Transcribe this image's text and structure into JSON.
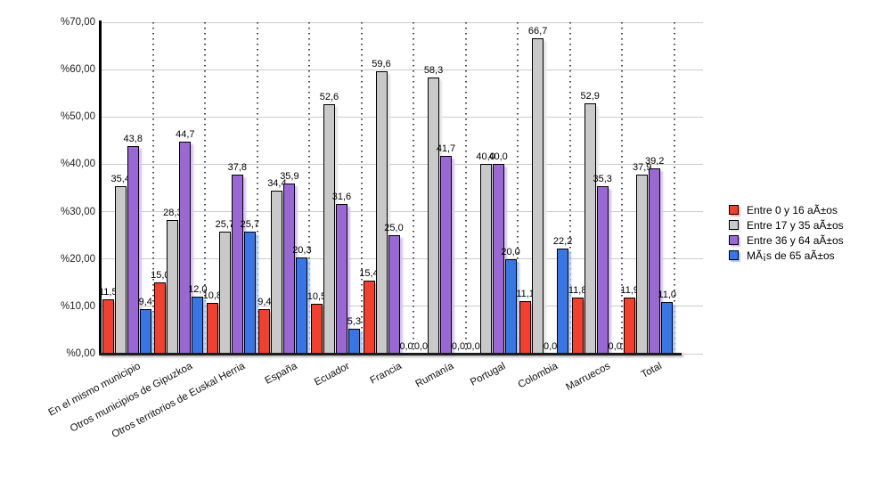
{
  "chart_data": {
    "type": "bar",
    "title": "",
    "xlabel": "",
    "ylabel": "",
    "ylim": [
      0,
      70
    ],
    "decimal_separator": ",",
    "grid": {
      "horizontal": "solid",
      "vertical": "dotted"
    },
    "legend_position": "right",
    "y_ticks": [
      {
        "label": "%70,00",
        "value": 70
      },
      {
        "label": "%60,00",
        "value": 60
      },
      {
        "label": "%50,00",
        "value": 50
      },
      {
        "label": "%40,00",
        "value": 40
      },
      {
        "label": "%30,00",
        "value": 30
      },
      {
        "label": "%20,00",
        "value": 20
      },
      {
        "label": "%10,00",
        "value": 10
      },
      {
        "label": "%0,00",
        "value": 0
      }
    ],
    "categories": [
      "En el mismo municipio",
      "Otros municipios de Gipuzkoa",
      "Otros territorios de Euskal Herria",
      "España",
      "Ecuador",
      "Francia",
      "Rumanía",
      "Portugal",
      "Colombia",
      "Marruecos",
      "Total"
    ],
    "series": [
      {
        "name": "Entre 0 y 16 aÃ±os",
        "color": "#f04130",
        "shadow_color": "#f7b0a7",
        "values": [
          11.5,
          15.0,
          10.8,
          9.4,
          10.5,
          15.4,
          0.0,
          0.0,
          11.1,
          11.8,
          11.9
        ]
      },
      {
        "name": "Entre 17 y 35 aÃ±os",
        "color": "#c9c9c9",
        "shadow_color": "#e5e5e5",
        "values": [
          35.4,
          28.3,
          25.7,
          34.4,
          52.6,
          59.6,
          58.3,
          40.0,
          66.7,
          52.9,
          37.9
        ]
      },
      {
        "name": "Entre 36 y 64 aÃ±os",
        "color": "#9a68d2",
        "shadow_color": "#d6c1f0",
        "values": [
          43.8,
          44.7,
          37.8,
          35.9,
          31.6,
          25.0,
          41.7,
          40.0,
          0.0,
          35.3,
          39.2
        ]
      },
      {
        "name": "MÃ¡s de 65 aÃ±os",
        "color": "#3a76e3",
        "shadow_color": "#aec9f5",
        "values": [
          9.4,
          12.0,
          25.7,
          20.3,
          5.3,
          0.0,
          0.0,
          20.0,
          22.2,
          0.0,
          11.0
        ]
      }
    ]
  }
}
